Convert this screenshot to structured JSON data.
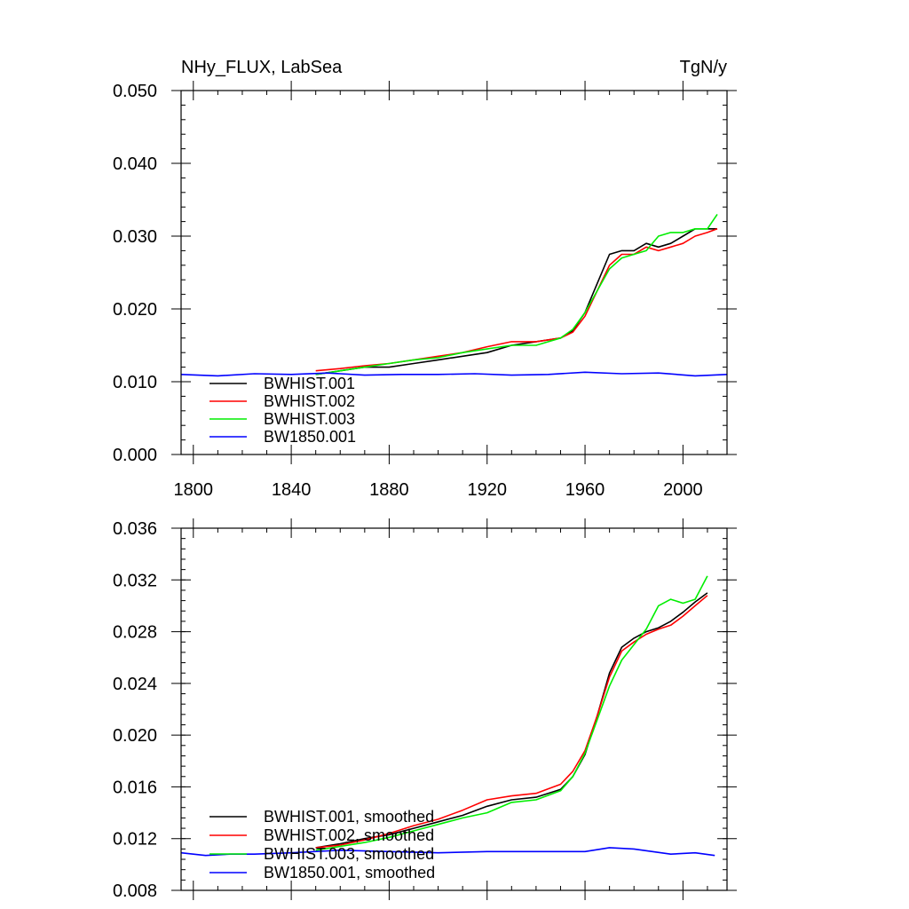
{
  "chart_data": [
    {
      "type": "line",
      "title_left": "NHy_FLUX, LabSea",
      "title_right": "TgN/y",
      "xlabel": "",
      "ylabel": "",
      "xlim": [
        1795,
        2018
      ],
      "ylim": [
        0.0,
        0.05
      ],
      "x_ticks": [
        1800,
        1840,
        1880,
        1920,
        1960,
        2000
      ],
      "x_tick_labels": [
        "1800",
        "1840",
        "1880",
        "1920",
        "1960",
        "2000"
      ],
      "y_ticks": [
        0.0,
        0.01,
        0.02,
        0.03,
        0.04,
        0.05
      ],
      "y_tick_labels": [
        "0.000",
        "0.010",
        "0.020",
        "0.030",
        "0.040",
        "0.050"
      ],
      "legend_position": "bottom-left",
      "series": [
        {
          "name": "BWHIST.001",
          "color": "#000000",
          "x": [
            1850,
            1860,
            1870,
            1880,
            1890,
            1900,
            1910,
            1920,
            1930,
            1940,
            1950,
            1955,
            1960,
            1965,
            1970,
            1975,
            1980,
            1985,
            1990,
            1995,
            2000,
            2005,
            2010,
            2014
          ],
          "y": [
            0.011,
            0.0115,
            0.012,
            0.012,
            0.0125,
            0.013,
            0.0135,
            0.014,
            0.015,
            0.0155,
            0.016,
            0.017,
            0.0195,
            0.0235,
            0.0275,
            0.028,
            0.028,
            0.029,
            0.0285,
            0.029,
            0.03,
            0.031,
            0.031,
            0.031
          ]
        },
        {
          "name": "BWHIST.002",
          "color": "#ff0000",
          "x": [
            1850,
            1860,
            1870,
            1880,
            1890,
            1900,
            1910,
            1920,
            1930,
            1940,
            1950,
            1955,
            1960,
            1965,
            1970,
            1975,
            1980,
            1985,
            1990,
            1995,
            2000,
            2005,
            2010,
            2014
          ],
          "y": [
            0.0115,
            0.0118,
            0.0122,
            0.0125,
            0.013,
            0.0135,
            0.014,
            0.0148,
            0.0155,
            0.0155,
            0.016,
            0.0168,
            0.019,
            0.0225,
            0.026,
            0.0275,
            0.0275,
            0.0285,
            0.028,
            0.0285,
            0.029,
            0.03,
            0.0305,
            0.031
          ]
        },
        {
          "name": "BWHIST.003",
          "color": "#00ee00",
          "x": [
            1850,
            1860,
            1870,
            1880,
            1890,
            1900,
            1910,
            1920,
            1930,
            1940,
            1950,
            1955,
            1960,
            1965,
            1970,
            1975,
            1980,
            1985,
            1990,
            1995,
            2000,
            2005,
            2010,
            2014
          ],
          "y": [
            0.011,
            0.0115,
            0.012,
            0.0125,
            0.013,
            0.0133,
            0.014,
            0.0145,
            0.015,
            0.015,
            0.016,
            0.0172,
            0.0195,
            0.0225,
            0.0255,
            0.027,
            0.0275,
            0.028,
            0.03,
            0.0305,
            0.0305,
            0.031,
            0.031,
            0.033
          ]
        },
        {
          "name": "BW1850.001",
          "color": "#0000ff",
          "x": [
            1795,
            1810,
            1825,
            1840,
            1855,
            1870,
            1885,
            1900,
            1915,
            1930,
            1945,
            1960,
            1975,
            1990,
            2005,
            2018
          ],
          "y": [
            0.011,
            0.0108,
            0.0111,
            0.011,
            0.0112,
            0.0109,
            0.011,
            0.011,
            0.0111,
            0.0109,
            0.011,
            0.0113,
            0.0111,
            0.0112,
            0.0108,
            0.011
          ]
        }
      ]
    },
    {
      "type": "line",
      "title_left": "",
      "title_right": "",
      "xlabel": "",
      "ylabel": "",
      "xlim": [
        1795,
        2018
      ],
      "ylim": [
        0.008,
        0.036
      ],
      "x_ticks": [
        1800,
        1840,
        1880,
        1920,
        1960,
        2000
      ],
      "y_ticks": [
        0.008,
        0.012,
        0.016,
        0.02,
        0.024,
        0.028,
        0.032,
        0.036
      ],
      "y_tick_labels": [
        "0.008",
        "0.012",
        "0.016",
        "0.020",
        "0.024",
        "0.028",
        "0.032",
        "0.036"
      ],
      "legend_position": "bottom-left",
      "series": [
        {
          "name": "BWHIST.001, smoothed",
          "color": "#000000",
          "x": [
            1850,
            1860,
            1870,
            1880,
            1890,
            1900,
            1910,
            1920,
            1930,
            1940,
            1950,
            1955,
            1960,
            1965,
            1970,
            1975,
            1980,
            1985,
            1990,
            1995,
            2000,
            2005,
            2010
          ],
          "y": [
            0.0113,
            0.0116,
            0.012,
            0.0123,
            0.0128,
            0.0133,
            0.0138,
            0.0145,
            0.015,
            0.0152,
            0.0158,
            0.0168,
            0.0185,
            0.0215,
            0.0248,
            0.0268,
            0.0275,
            0.028,
            0.0283,
            0.0288,
            0.0295,
            0.0303,
            0.031
          ]
        },
        {
          "name": "BWHIST.002, smoothed",
          "color": "#ff0000",
          "x": [
            1850,
            1860,
            1870,
            1880,
            1890,
            1900,
            1910,
            1920,
            1930,
            1940,
            1950,
            1955,
            1960,
            1965,
            1970,
            1975,
            1980,
            1985,
            1990,
            1995,
            2000,
            2005,
            2010
          ],
          "y": [
            0.0113,
            0.0115,
            0.0119,
            0.0124,
            0.013,
            0.0135,
            0.0142,
            0.015,
            0.0153,
            0.0155,
            0.0162,
            0.0172,
            0.0188,
            0.0215,
            0.0245,
            0.0265,
            0.0272,
            0.0278,
            0.0282,
            0.0285,
            0.0292,
            0.03,
            0.0308
          ]
        },
        {
          "name": "BWHIST.003, smoothed",
          "color": "#00ee00",
          "x": [
            1850,
            1860,
            1870,
            1880,
            1890,
            1900,
            1910,
            1920,
            1930,
            1940,
            1950,
            1955,
            1960,
            1965,
            1970,
            1975,
            1980,
            1985,
            1990,
            1995,
            2000,
            2005,
            2010
          ],
          "y": [
            0.0111,
            0.0114,
            0.0117,
            0.0121,
            0.0126,
            0.0131,
            0.0136,
            0.014,
            0.0148,
            0.015,
            0.0157,
            0.0168,
            0.0186,
            0.0212,
            0.0238,
            0.0258,
            0.027,
            0.0282,
            0.03,
            0.0305,
            0.0302,
            0.0305,
            0.0323
          ]
        },
        {
          "name": "BW1850.001, smoothed",
          "color": "#0000ff",
          "x": [
            1795,
            1805,
            1815,
            1825,
            1840,
            1860,
            1880,
            1900,
            1920,
            1940,
            1960,
            1970,
            1980,
            1995,
            2005,
            2013
          ],
          "y": [
            0.0109,
            0.0107,
            0.0108,
            0.0108,
            0.0109,
            0.0111,
            0.011,
            0.0109,
            0.011,
            0.011,
            0.011,
            0.0113,
            0.0112,
            0.0108,
            0.0109,
            0.0107
          ]
        }
      ]
    }
  ]
}
